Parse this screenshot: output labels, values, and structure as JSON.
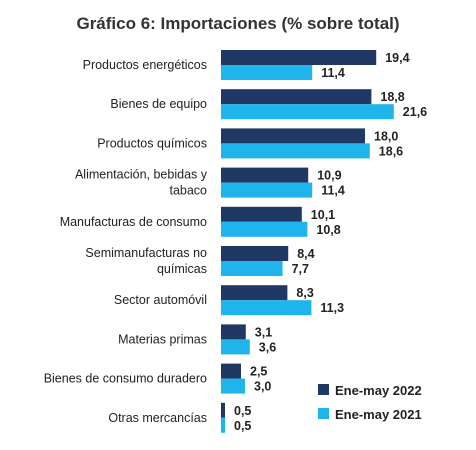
{
  "chart_data": {
    "type": "bar",
    "orientation": "horizontal",
    "title": "Gráfico 6: Importaciones (% sobre total)",
    "categories": [
      [
        "Productos energéticos"
      ],
      [
        "Bienes de equipo"
      ],
      [
        "Productos químicos"
      ],
      [
        "Alimentación, bebidas y",
        "tabaco"
      ],
      [
        "Manufacturas de consumo"
      ],
      [
        "Semimanufacturas no",
        "químicas"
      ],
      [
        "Sector automóvil"
      ],
      [
        "Materias primas"
      ],
      [
        "Bienes de consumo duradero"
      ],
      [
        "Otras mercancías"
      ]
    ],
    "series": [
      {
        "name": "Ene-may 2022",
        "color": "#1f3864",
        "values": [
          19.4,
          18.8,
          18.0,
          10.9,
          10.1,
          8.4,
          8.3,
          3.1,
          2.5,
          0.5
        ],
        "labels": [
          "19,4",
          "18,8",
          "18,0",
          "10,9",
          "10,1",
          "8,4",
          "8,3",
          "3,1",
          "2,5",
          "0,5"
        ]
      },
      {
        "name": "Ene-may 2021",
        "color": "#1fb4ec",
        "values": [
          11.4,
          21.6,
          18.6,
          11.4,
          10.8,
          7.7,
          11.3,
          3.6,
          3.0,
          0.5
        ],
        "labels": [
          "11,4",
          "21,6",
          "18,6",
          "11,4",
          "10,8",
          "7,7",
          "11,3",
          "3,6",
          "3,0",
          "0,5"
        ]
      }
    ],
    "xlim": [
      0,
      24
    ],
    "grid": false,
    "legend_position": "bottom-right"
  }
}
